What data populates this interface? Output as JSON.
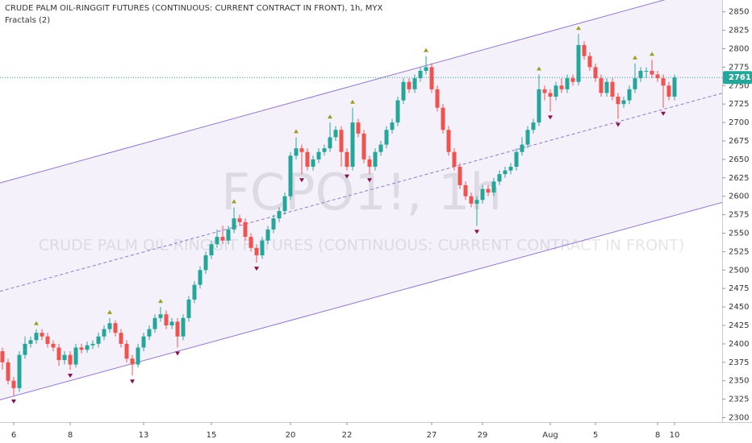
{
  "chart_data": {
    "type": "candlestick",
    "title": "CRUDE PALM OIL-RINGGIT FUTURES (CONTINUOUS: CURRENT CONTRACT IN FRONT), 1h, MYX",
    "subtitle": "Fractals (2)",
    "watermark": [
      "FCPO1!, 1h",
      "CRUDE PALM OIL-RINGGIT FUTURES (CONTINUOUS: CURRENT CONTRACT IN FRONT)"
    ],
    "categories": [
      null,
      null,
      "6",
      null,
      null,
      null,
      null,
      null,
      null,
      null,
      null,
      null,
      "8",
      null,
      null,
      null,
      null,
      null,
      null,
      null,
      null,
      null,
      null,
      null,
      null,
      "13",
      null,
      null,
      null,
      null,
      null,
      null,
      null,
      null,
      null,
      null,
      null,
      "15",
      null,
      null,
      null,
      null,
      null,
      null,
      null,
      null,
      null,
      null,
      null,
      null,
      null,
      "20",
      null,
      null,
      null,
      null,
      null,
      null,
      null,
      null,
      null,
      "22",
      null,
      null,
      null,
      null,
      null,
      null,
      null,
      null,
      null,
      null,
      null,
      null,
      null,
      null,
      "27",
      null,
      null,
      null,
      null,
      null,
      null,
      null,
      null,
      "29",
      null,
      null,
      null,
      null,
      null,
      null,
      null,
      null,
      null,
      null,
      null,
      "Aug",
      null,
      null,
      null,
      null,
      null,
      null,
      null,
      "5",
      null,
      null,
      null,
      null,
      null,
      null,
      null,
      null,
      null,
      null,
      "8",
      null,
      null,
      "10"
    ],
    "ohlc": [
      [
        2390,
        2395,
        2365,
        2375
      ],
      [
        2375,
        2380,
        2345,
        2350
      ],
      [
        2350,
        2355,
        2330,
        2340
      ],
      [
        2340,
        2390,
        2335,
        2385
      ],
      [
        2385,
        2410,
        2380,
        2400
      ],
      [
        2400,
        2410,
        2395,
        2405
      ],
      [
        2405,
        2420,
        2400,
        2415
      ],
      [
        2415,
        2420,
        2405,
        2410
      ],
      [
        2410,
        2415,
        2395,
        2400
      ],
      [
        2400,
        2405,
        2390,
        2395
      ],
      [
        2395,
        2400,
        2370,
        2378
      ],
      [
        2378,
        2390,
        2372,
        2385
      ],
      [
        2385,
        2390,
        2365,
        2372
      ],
      [
        2372,
        2400,
        2368,
        2395
      ],
      [
        2395,
        2400,
        2387,
        2392
      ],
      [
        2392,
        2403,
        2388,
        2398
      ],
      [
        2398,
        2405,
        2393,
        2400
      ],
      [
        2400,
        2415,
        2395,
        2410
      ],
      [
        2410,
        2425,
        2405,
        2420
      ],
      [
        2420,
        2435,
        2415,
        2428
      ],
      [
        2428,
        2432,
        2410,
        2415
      ],
      [
        2415,
        2420,
        2395,
        2400
      ],
      [
        2400,
        2405,
        2375,
        2380
      ],
      [
        2380,
        2385,
        2357,
        2372
      ],
      [
        2372,
        2400,
        2368,
        2395
      ],
      [
        2395,
        2415,
        2390,
        2410
      ],
      [
        2410,
        2425,
        2405,
        2420
      ],
      [
        2420,
        2440,
        2415,
        2435
      ],
      [
        2435,
        2450,
        2430,
        2440
      ],
      [
        2440,
        2445,
        2420,
        2425
      ],
      [
        2425,
        2435,
        2420,
        2430
      ],
      [
        2430,
        2435,
        2395,
        2410
      ],
      [
        2410,
        2440,
        2405,
        2435
      ],
      [
        2435,
        2465,
        2430,
        2460
      ],
      [
        2460,
        2485,
        2455,
        2480
      ],
      [
        2480,
        2505,
        2475,
        2500
      ],
      [
        2500,
        2525,
        2495,
        2520
      ],
      [
        2520,
        2540,
        2515,
        2535
      ],
      [
        2535,
        2555,
        2530,
        2545
      ],
      [
        2545,
        2560,
        2535,
        2540
      ],
      [
        2540,
        2560,
        2535,
        2555
      ],
      [
        2555,
        2585,
        2550,
        2570
      ],
      [
        2570,
        2575,
        2560,
        2565
      ],
      [
        2565,
        2570,
        2540,
        2545
      ],
      [
        2545,
        2550,
        2525,
        2530
      ],
      [
        2530,
        2535,
        2510,
        2520
      ],
      [
        2520,
        2545,
        2515,
        2540
      ],
      [
        2540,
        2560,
        2535,
        2555
      ],
      [
        2555,
        2575,
        2550,
        2570
      ],
      [
        2570,
        2585,
        2565,
        2580
      ],
      [
        2580,
        2605,
        2575,
        2600
      ],
      [
        2600,
        2660,
        2595,
        2655
      ],
      [
        2655,
        2680,
        2650,
        2665
      ],
      [
        2665,
        2670,
        2630,
        2660
      ],
      [
        2660,
        2665,
        2635,
        2640
      ],
      [
        2640,
        2655,
        2635,
        2650
      ],
      [
        2650,
        2665,
        2645,
        2660
      ],
      [
        2660,
        2670,
        2655,
        2665
      ],
      [
        2665,
        2700,
        2660,
        2680
      ],
      [
        2680,
        2695,
        2675,
        2690
      ],
      [
        2690,
        2695,
        2640,
        2660
      ],
      [
        2660,
        2665,
        2635,
        2640
      ],
      [
        2640,
        2720,
        2635,
        2700
      ],
      [
        2700,
        2705,
        2680,
        2685
      ],
      [
        2685,
        2690,
        2645,
        2650
      ],
      [
        2650,
        2655,
        2630,
        2640
      ],
      [
        2640,
        2665,
        2635,
        2660
      ],
      [
        2660,
        2675,
        2655,
        2670
      ],
      [
        2670,
        2695,
        2665,
        2690
      ],
      [
        2690,
        2705,
        2685,
        2700
      ],
      [
        2700,
        2735,
        2695,
        2730
      ],
      [
        2730,
        2760,
        2725,
        2755
      ],
      [
        2755,
        2760,
        2740,
        2745
      ],
      [
        2745,
        2765,
        2740,
        2760
      ],
      [
        2760,
        2775,
        2755,
        2770
      ],
      [
        2770,
        2790,
        2765,
        2775
      ],
      [
        2775,
        2780,
        2740,
        2745
      ],
      [
        2745,
        2750,
        2715,
        2720
      ],
      [
        2720,
        2725,
        2685,
        2690
      ],
      [
        2690,
        2695,
        2655,
        2660
      ],
      [
        2660,
        2665,
        2635,
        2640
      ],
      [
        2640,
        2645,
        2610,
        2615
      ],
      [
        2615,
        2620,
        2595,
        2600
      ],
      [
        2600,
        2605,
        2585,
        2590
      ],
      [
        2590,
        2600,
        2560,
        2595
      ],
      [
        2595,
        2615,
        2590,
        2610
      ],
      [
        2610,
        2615,
        2600,
        2605
      ],
      [
        2605,
        2625,
        2600,
        2620
      ],
      [
        2620,
        2635,
        2615,
        2630
      ],
      [
        2630,
        2640,
        2625,
        2635
      ],
      [
        2635,
        2645,
        2630,
        2640
      ],
      [
        2640,
        2665,
        2635,
        2660
      ],
      [
        2660,
        2680,
        2655,
        2670
      ],
      [
        2670,
        2695,
        2665,
        2690
      ],
      [
        2690,
        2705,
        2685,
        2700
      ],
      [
        2700,
        2765,
        2695,
        2745
      ],
      [
        2745,
        2750,
        2730,
        2740
      ],
      [
        2740,
        2745,
        2715,
        2735
      ],
      [
        2735,
        2755,
        2730,
        2750
      ],
      [
        2750,
        2760,
        2740,
        2745
      ],
      [
        2745,
        2765,
        2740,
        2760
      ],
      [
        2760,
        2765,
        2750,
        2755
      ],
      [
        2755,
        2820,
        2750,
        2805
      ],
      [
        2805,
        2810,
        2785,
        2790
      ],
      [
        2790,
        2795,
        2770,
        2775
      ],
      [
        2775,
        2780,
        2755,
        2760
      ],
      [
        2760,
        2765,
        2735,
        2740
      ],
      [
        2740,
        2760,
        2735,
        2755
      ],
      [
        2755,
        2760,
        2730,
        2735
      ],
      [
        2735,
        2740,
        2705,
        2725
      ],
      [
        2725,
        2735,
        2720,
        2730
      ],
      [
        2730,
        2750,
        2725,
        2745
      ],
      [
        2745,
        2780,
        2740,
        2760
      ],
      [
        2760,
        2775,
        2755,
        2770
      ],
      [
        2770,
        2775,
        2760,
        2770
      ],
      [
        2770,
        2785,
        2760,
        2765
      ],
      [
        2765,
        2770,
        2755,
        2760
      ],
      [
        2760,
        2765,
        2720,
        2750
      ],
      [
        2750,
        2755,
        2730,
        2735
      ],
      [
        2735,
        2765,
        2730,
        2761
      ]
    ],
    "up_color": "#26a69a",
    "down_color": "#ef5350",
    "ylim": [
      2294,
      2866
    ],
    "yticks": [
      2300,
      2325,
      2350,
      2375,
      2400,
      2425,
      2450,
      2475,
      2500,
      2525,
      2550,
      2575,
      2600,
      2625,
      2650,
      2675,
      2700,
      2725,
      2750,
      2775,
      2800,
      2825,
      2850
    ],
    "channel": {
      "upper": [
        2619,
        2870
      ],
      "middle": [
        2472,
        2722
      ],
      "lower": [
        2325,
        2574
      ],
      "color": "#9575cd"
    },
    "fractals": {
      "up": [
        6,
        19,
        28,
        41,
        52,
        58,
        62,
        75,
        95,
        102,
        112,
        115
      ],
      "down": [
        2,
        12,
        23,
        31,
        45,
        53,
        61,
        65,
        84,
        97,
        109,
        117
      ],
      "up_color": "#9e9d24",
      "down_color": "#880e4f"
    },
    "last_price_color": "#26a69a"
  }
}
